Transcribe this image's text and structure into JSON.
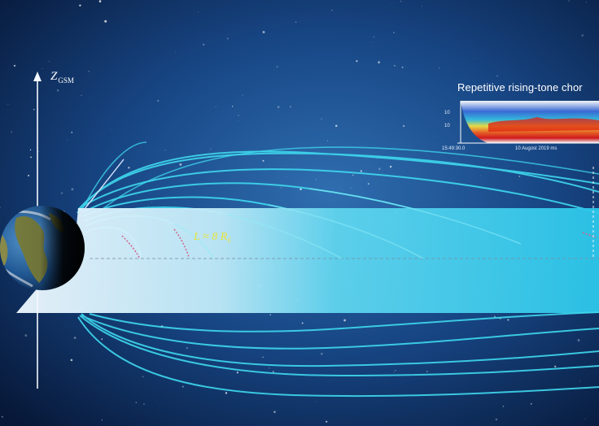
{
  "labels": {
    "axis": "Z",
    "axis_subscript": "GSM",
    "spectrogram_title": "Repetitive rising-tone chor",
    "l_shell": "L ≈ 8 R",
    "l_shell_subscript": "E",
    "spectrogram_time_tick": "15:49:30.0",
    "spectrogram_date": "10 August 2019 ms",
    "spectrogram_y_tick_high": "10",
    "spectrogram_y_tick_low": "10"
  },
  "colors": {
    "space_dark": "#071838",
    "space_mid": "#1b4f8f",
    "field_line": "#3fd8ee",
    "plasma_sheet": "#7fe0f2",
    "l_label": "#e8e23a",
    "chorus_marks": "#d2628a",
    "earth_ocean": "#2a6fb0",
    "earth_land": "#6b7a3a"
  },
  "objects": [
    "earth",
    "magnetic-field-lines",
    "plasma-sheet",
    "z-axis",
    "chorus-spectrogram-inset"
  ]
}
